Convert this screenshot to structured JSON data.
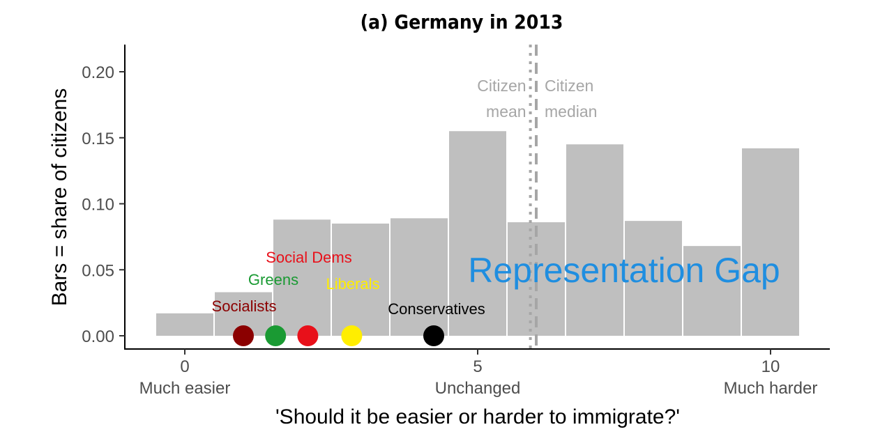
{
  "chart_data": {
    "type": "bar",
    "title": "(a) Germany in 2013",
    "xlabel": "'Should it be easier or harder to immigrate?'",
    "ylabel": "Bars = share of citizens",
    "xlim": [
      -1,
      11
    ],
    "ylim": [
      0,
      0.22
    ],
    "x_ticks": [
      {
        "value": 0,
        "label": "0",
        "sublabel": "Much easier"
      },
      {
        "value": 5,
        "label": "5",
        "sublabel": "Unchanged"
      },
      {
        "value": 10,
        "label": "10",
        "sublabel": "Much harder"
      }
    ],
    "y_ticks": [
      {
        "value": 0.0,
        "label": "0.00"
      },
      {
        "value": 0.05,
        "label": "0.05"
      },
      {
        "value": 0.1,
        "label": "0.10"
      },
      {
        "value": 0.15,
        "label": "0.15"
      },
      {
        "value": 0.2,
        "label": "0.20"
      }
    ],
    "categories": [
      0,
      1,
      2,
      3,
      4,
      5,
      6,
      7,
      8,
      9,
      10
    ],
    "values": [
      0.017,
      0.033,
      0.088,
      0.085,
      0.089,
      0.155,
      0.086,
      0.145,
      0.087,
      0.068,
      0.142
    ],
    "bar_color": "#bfbfbf",
    "reference_lines": [
      {
        "name": "Citizen mean",
        "label_lines": [
          "Citizen",
          "mean"
        ],
        "x": 5.9,
        "style": "dotted",
        "color": "#a6a6a6"
      },
      {
        "name": "Citizen median",
        "label_lines": [
          "Citizen",
          "median"
        ],
        "x": 6.0,
        "style": "dashed",
        "color": "#a6a6a6"
      }
    ],
    "parties": [
      {
        "name": "Socialists",
        "x": 1.0,
        "color": "#8b0000"
      },
      {
        "name": "Greens",
        "x": 1.55,
        "color": "#1a9a33"
      },
      {
        "name": "Social Dems",
        "x": 2.1,
        "color": "#e8101a"
      },
      {
        "name": "Liberals",
        "x": 2.85,
        "color": "#ffee00"
      },
      {
        "name": "Conservatives",
        "x": 4.25,
        "color": "#000000"
      }
    ],
    "annotation": {
      "text": "Representation Gap",
      "color": "#1f8ee0"
    },
    "grid": false
  }
}
